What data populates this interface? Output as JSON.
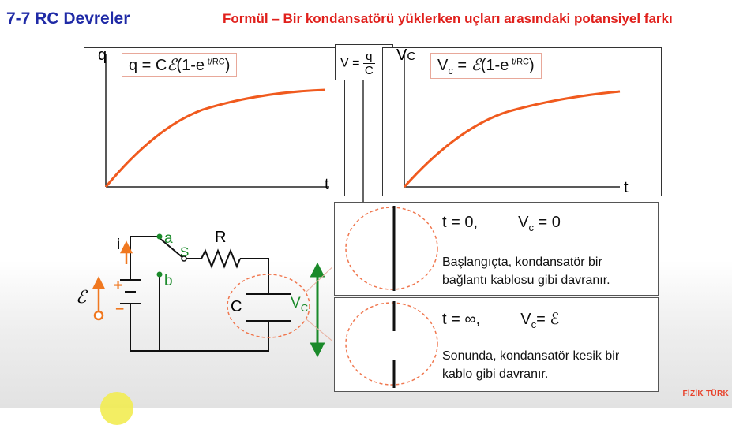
{
  "header": {
    "title": "7-7 RC Devreler",
    "subtitle": "Formül – Bir kondansatörü yüklerken uçları arasındaki potansiyel farkı"
  },
  "graph_left": {
    "y_label": "q",
    "x_label": "t",
    "formula_prefix": "q = C",
    "formula_emf": "ℰ",
    "formula_open": "(1-e",
    "formula_exp": "-t/RC",
    "formula_close": ")"
  },
  "relation_box": {
    "lhs": "V =",
    "numerator": "q",
    "denominator": "C"
  },
  "graph_right": {
    "y_label": "V",
    "y_label_sub": "C",
    "x_label": "t",
    "formula_v": "V",
    "formula_v_sub": "c",
    "formula_eq": " = ",
    "formula_emf": "ℰ",
    "formula_open": "(1-e",
    "formula_exp": "-t/RC",
    "formula_close": ")"
  },
  "circuit": {
    "current_label": "i",
    "switch_a": "a",
    "switch_s": "S",
    "switch_b": "b",
    "resistor_label": "R",
    "capacitor_label": "C",
    "battery_plus": "+",
    "battery_minus": "−",
    "emf_symbol": "ℰ",
    "vc_label": "V",
    "vc_sub": "C"
  },
  "info_top": {
    "time": "t = 0,",
    "v": "V",
    "v_sub": "c",
    "value": " = 0",
    "line1": "Başlangıçta, kondansatör bir",
    "line2": "bağlantı kablosu gibi davranır."
  },
  "info_bottom": {
    "time": "t = ∞,",
    "v": "V",
    "v_sub": "c",
    "value": "= ℰ",
    "line1": "Sonunda, kondansatör kesik bir",
    "line2": "kablo gibi davranır."
  },
  "brand": "FİZİK TÜRK",
  "colors": {
    "title": "#1f2aa6",
    "subtitle": "#e0201c",
    "curve": "#f05a1e",
    "circuit_green": "#1a8a2a",
    "circuit_orange": "#f07820",
    "formula_border": "#e8a89a"
  }
}
